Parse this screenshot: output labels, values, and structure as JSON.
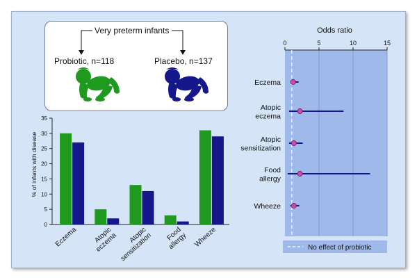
{
  "design": {
    "population": "Very preterm infants",
    "probiotic_label": "Probiotic, n=118",
    "placebo_label": "Placebo, n=137",
    "probiotic_color": "#1f9a1f",
    "placebo_color": "#14188a"
  },
  "chart_data": [
    {
      "type": "bar",
      "categories": [
        "Eczema",
        "Atopic eczema",
        "Atopic sensitization",
        "Food allergy",
        "Wheeze"
      ],
      "category_lines": [
        [
          "Eczema"
        ],
        [
          "Atopic",
          "eczema"
        ],
        [
          "Atopic",
          "sensitization"
        ],
        [
          "Food",
          "allergy"
        ],
        [
          "Wheeze"
        ]
      ],
      "series": [
        {
          "values": [
            30,
            5,
            13,
            3,
            31
          ],
          "color": "#1f9a1f"
        },
        {
          "values": [
            27,
            2,
            11,
            1,
            29
          ],
          "color": "#14188a"
        }
      ],
      "ylabel": "% of infants with disease",
      "ylim": [
        0,
        35
      ],
      "yticks": [
        0,
        5,
        10,
        15,
        20,
        25,
        30,
        35
      ]
    },
    {
      "type": "scatter",
      "title": "Odds ratio",
      "categories": [
        "Eczema",
        "Atopic eczema",
        "Atopic sensitization",
        "Food allergy",
        "Wheeze"
      ],
      "category_lines": [
        [
          "Eczema"
        ],
        [
          "Atopic",
          "eczema"
        ],
        [
          "Atopic",
          "sensitization"
        ],
        [
          "Food",
          "allergy"
        ],
        [
          "Wheeze"
        ]
      ],
      "estimates": [
        1.2,
        2.2,
        1.3,
        2.2,
        1.3
      ],
      "ci_low": [
        0.8,
        0.6,
        0.6,
        0.4,
        0.8
      ],
      "ci_high": [
        2.0,
        8.6,
        2.6,
        12.5,
        2.1
      ],
      "xlim": [
        0,
        15
      ],
      "xticks": [
        0,
        5,
        10,
        15
      ],
      "reference_line": 1,
      "legend": "No effect of probiotic",
      "point_color": "#d04aa8",
      "ci_color": "#14188a"
    }
  ]
}
